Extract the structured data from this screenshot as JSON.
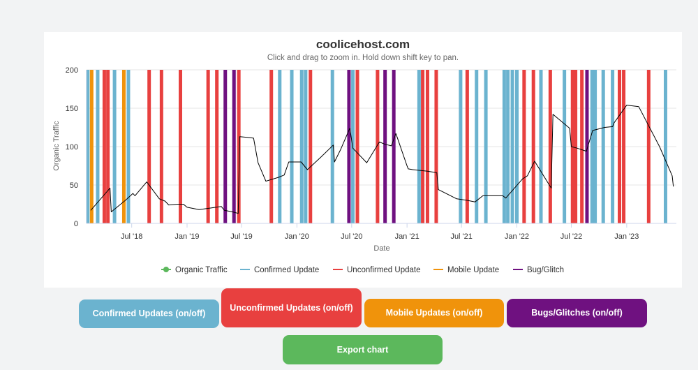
{
  "chart_data": {
    "type": "line",
    "title": "coolicehost.com",
    "subtitle": "Click and drag to zoom in. Hold down shift key to pan.",
    "xlabel": "Date",
    "ylabel": "Organic Traffic",
    "xlim": [
      "2018-02-01",
      "2023-06-15"
    ],
    "ylim": [
      0,
      200
    ],
    "grid": true,
    "legend_position": "bottom",
    "yticks": [
      0,
      50,
      100,
      150,
      200
    ],
    "xticks": [
      {
        "date": "2018-07-01",
        "label": "Jul '18"
      },
      {
        "date": "2019-01-01",
        "label": "Jan '19"
      },
      {
        "date": "2019-07-01",
        "label": "Jul '19"
      },
      {
        "date": "2020-01-01",
        "label": "Jan '20"
      },
      {
        "date": "2020-07-01",
        "label": "Jul '20"
      },
      {
        "date": "2021-01-01",
        "label": "Jan '21"
      },
      {
        "date": "2021-07-01",
        "label": "Jul '21"
      },
      {
        "date": "2022-01-01",
        "label": "Jan '22"
      },
      {
        "date": "2022-07-01",
        "label": "Jul '22"
      },
      {
        "date": "2023-01-01",
        "label": "Jan '23"
      }
    ],
    "legend": [
      {
        "name": "Organic Traffic",
        "color": "#5cb85c",
        "marker": "circle"
      },
      {
        "name": "Confirmed Update",
        "color": "#6bb3cf",
        "marker": "line"
      },
      {
        "name": "Unconfirmed Update",
        "color": "#e8403f",
        "marker": "line"
      },
      {
        "name": "Mobile Update",
        "color": "#f0930b",
        "marker": "line"
      },
      {
        "name": "Bug/Glitch",
        "color": "#6f1180",
        "marker": "line"
      }
    ],
    "series": [
      {
        "name": "Organic Traffic",
        "color": "#000000",
        "points": [
          [
            "2018-02-15",
            17
          ],
          [
            "2018-04-20",
            46
          ],
          [
            "2018-04-24",
            15
          ],
          [
            "2018-06-10",
            30
          ],
          [
            "2018-07-05",
            39
          ],
          [
            "2018-07-12",
            36
          ],
          [
            "2018-08-20",
            54
          ],
          [
            "2018-10-01",
            32
          ],
          [
            "2018-10-20",
            29
          ],
          [
            "2018-11-01",
            24
          ],
          [
            "2018-12-01",
            25
          ],
          [
            "2018-12-20",
            25
          ],
          [
            "2019-01-01",
            21
          ],
          [
            "2019-02-10",
            18
          ],
          [
            "2019-03-20",
            20
          ],
          [
            "2019-04-25",
            22
          ],
          [
            "2019-05-05",
            17
          ],
          [
            "2019-06-01",
            15
          ],
          [
            "2019-06-20",
            13
          ],
          [
            "2019-06-25",
            113
          ],
          [
            "2019-07-20",
            112
          ],
          [
            "2019-08-10",
            111
          ],
          [
            "2019-08-25",
            79
          ],
          [
            "2019-09-20",
            55
          ],
          [
            "2019-11-01",
            60
          ],
          [
            "2019-11-20",
            63
          ],
          [
            "2019-12-05",
            80
          ],
          [
            "2020-01-01",
            80
          ],
          [
            "2020-01-15",
            80
          ],
          [
            "2020-02-05",
            70
          ],
          [
            "2020-03-20",
            86
          ],
          [
            "2020-05-01",
            102
          ],
          [
            "2020-05-05",
            80
          ],
          [
            "2020-05-25",
            96
          ],
          [
            "2020-06-25",
            124
          ],
          [
            "2020-07-05",
            98
          ],
          [
            "2020-08-20",
            79
          ],
          [
            "2020-10-01",
            106
          ],
          [
            "2020-10-20",
            103
          ],
          [
            "2020-11-10",
            101
          ],
          [
            "2020-11-25",
            117
          ],
          [
            "2021-01-01",
            75
          ],
          [
            "2021-01-05",
            71
          ],
          [
            "2021-01-20",
            70
          ],
          [
            "2021-03-10",
            68
          ],
          [
            "2021-04-10",
            66
          ],
          [
            "2021-04-15",
            44
          ],
          [
            "2021-06-15",
            32
          ],
          [
            "2021-07-20",
            30
          ],
          [
            "2021-08-15",
            28
          ],
          [
            "2021-09-10",
            36
          ],
          [
            "2021-11-15",
            36
          ],
          [
            "2021-11-25",
            33
          ],
          [
            "2022-01-20",
            58
          ],
          [
            "2022-02-05",
            62
          ],
          [
            "2022-03-01",
            81
          ],
          [
            "2022-04-25",
            46
          ],
          [
            "2022-05-01",
            142
          ],
          [
            "2022-06-25",
            124
          ],
          [
            "2022-07-01",
            100
          ],
          [
            "2022-07-20",
            98
          ],
          [
            "2022-08-20",
            94
          ],
          [
            "2022-09-10",
            121
          ],
          [
            "2022-10-20",
            125
          ],
          [
            "2022-11-15",
            126
          ],
          [
            "2022-11-20",
            131
          ],
          [
            "2023-01-01",
            154
          ],
          [
            "2023-02-10",
            152
          ],
          [
            "2023-04-20",
            100
          ],
          [
            "2023-06-01",
            62
          ],
          [
            "2023-06-05",
            48
          ]
        ]
      }
    ],
    "events": [
      {
        "date": "2018-02-05",
        "type": "confirmed"
      },
      {
        "date": "2018-02-18",
        "type": "mobile"
      },
      {
        "date": "2018-03-10",
        "type": "confirmed"
      },
      {
        "date": "2018-04-01",
        "type": "unconfirmed"
      },
      {
        "date": "2018-04-13",
        "type": "unconfirmed"
      },
      {
        "date": "2018-05-05",
        "type": "confirmed"
      },
      {
        "date": "2018-06-05",
        "type": "mobile"
      },
      {
        "date": "2018-06-20",
        "type": "confirmed"
      },
      {
        "date": "2018-08-28",
        "type": "unconfirmed"
      },
      {
        "date": "2018-10-08",
        "type": "unconfirmed"
      },
      {
        "date": "2018-12-10",
        "type": "unconfirmed"
      },
      {
        "date": "2019-03-12",
        "type": "unconfirmed"
      },
      {
        "date": "2019-04-10",
        "type": "unconfirmed"
      },
      {
        "date": "2019-05-08",
        "type": "bug"
      },
      {
        "date": "2019-06-06",
        "type": "bug"
      },
      {
        "date": "2019-06-22",
        "type": "unconfirmed"
      },
      {
        "date": "2019-10-08",
        "type": "unconfirmed"
      },
      {
        "date": "2019-11-05",
        "type": "confirmed"
      },
      {
        "date": "2019-12-15",
        "type": "confirmed"
      },
      {
        "date": "2020-01-17",
        "type": "confirmed"
      },
      {
        "date": "2020-01-30",
        "type": "confirmed"
      },
      {
        "date": "2020-02-15",
        "type": "unconfirmed"
      },
      {
        "date": "2020-04-28",
        "type": "confirmed"
      },
      {
        "date": "2020-06-22",
        "type": "bug"
      },
      {
        "date": "2020-07-05",
        "type": "confirmed"
      },
      {
        "date": "2020-07-20",
        "type": "unconfirmed"
      },
      {
        "date": "2020-09-25",
        "type": "unconfirmed"
      },
      {
        "date": "2020-10-20",
        "type": "bug"
      },
      {
        "date": "2020-11-18",
        "type": "bug"
      },
      {
        "date": "2021-02-10",
        "type": "confirmed"
      },
      {
        "date": "2021-02-22",
        "type": "unconfirmed"
      },
      {
        "date": "2021-03-10",
        "type": "unconfirmed"
      },
      {
        "date": "2021-04-08",
        "type": "unconfirmed"
      },
      {
        "date": "2021-06-28",
        "type": "confirmed"
      },
      {
        "date": "2021-07-20",
        "type": "unconfirmed"
      },
      {
        "date": "2021-08-20",
        "type": "confirmed"
      },
      {
        "date": "2021-09-20",
        "type": "confirmed"
      },
      {
        "date": "2021-11-20",
        "type": "confirmed"
      },
      {
        "date": "2021-12-02",
        "type": "confirmed"
      },
      {
        "date": "2021-12-17",
        "type": "confirmed"
      },
      {
        "date": "2022-01-01",
        "type": "confirmed"
      },
      {
        "date": "2022-01-25",
        "type": "unconfirmed"
      },
      {
        "date": "2022-02-25",
        "type": "unconfirmed"
      },
      {
        "date": "2022-03-22",
        "type": "confirmed"
      },
      {
        "date": "2022-04-22",
        "type": "unconfirmed"
      },
      {
        "date": "2022-06-08",
        "type": "confirmed"
      },
      {
        "date": "2022-07-05",
        "type": "unconfirmed"
      },
      {
        "date": "2022-07-15",
        "type": "unconfirmed"
      },
      {
        "date": "2022-08-05",
        "type": "unconfirmed"
      },
      {
        "date": "2022-08-22",
        "type": "bug"
      },
      {
        "date": "2022-09-08",
        "type": "confirmed"
      },
      {
        "date": "2022-09-18",
        "type": "confirmed"
      },
      {
        "date": "2022-10-15",
        "type": "confirmed"
      },
      {
        "date": "2022-11-15",
        "type": "confirmed"
      },
      {
        "date": "2022-12-08",
        "type": "unconfirmed"
      },
      {
        "date": "2022-12-22",
        "type": "unconfirmed"
      },
      {
        "date": "2023-03-15",
        "type": "unconfirmed"
      },
      {
        "date": "2023-05-10",
        "type": "confirmed"
      }
    ],
    "event_colors": {
      "confirmed": "#6bb3cf",
      "unconfirmed": "#e8403f",
      "mobile": "#f0930b",
      "bug": "#6f1180"
    }
  },
  "buttons": {
    "confirmed": {
      "label": "Confirmed Updates (on/off)",
      "color": "#6bb3cf"
    },
    "unconfirmed": {
      "label": "Unconfirmed Updates (on/off)",
      "color": "#e8403f"
    },
    "mobile": {
      "label": "Mobile Updates (on/off)",
      "color": "#f0930b"
    },
    "bugs": {
      "label": "Bugs/Glitches (on/off)",
      "color": "#6f1180"
    },
    "export": {
      "label": "Export chart",
      "color": "#5cb85c"
    }
  }
}
